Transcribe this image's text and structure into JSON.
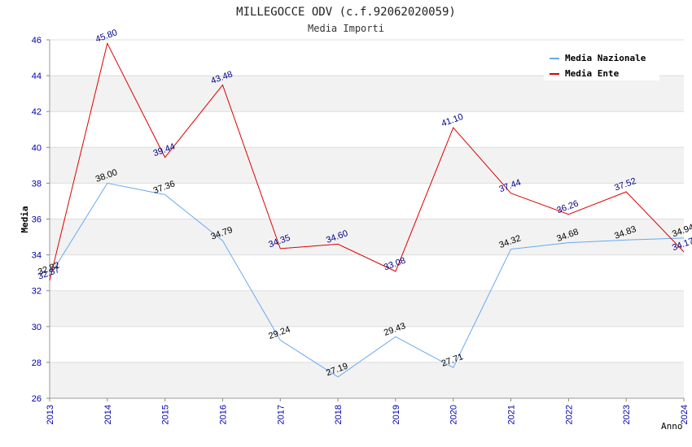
{
  "chart_data": {
    "type": "line",
    "title": "MILLEGOCCE ODV (c.f.92062020059)",
    "subtitle": "Media Importi",
    "xlabel": "Anno",
    "ylabel": "Media",
    "ylim": [
      26,
      46
    ],
    "yticks": [
      "26",
      "28",
      "30",
      "32",
      "34",
      "36",
      "38",
      "40",
      "42",
      "44",
      "46"
    ],
    "categories": [
      "2013",
      "2014",
      "2015",
      "2016",
      "2017",
      "2018",
      "2019",
      "2020",
      "2021",
      "2022",
      "2023",
      "2024"
    ],
    "legend_position": "top-right",
    "series": [
      {
        "name": "Media Nazionale",
        "color": "#66aaee",
        "label_color": "#000000",
        "values": [
          32.82,
          38.0,
          37.36,
          34.79,
          29.24,
          27.19,
          29.43,
          27.71,
          34.32,
          34.68,
          34.83,
          34.94
        ],
        "labels": [
          "32.82",
          "38.00",
          "37.36",
          "34.79",
          "29.24",
          "27.19",
          "29.43",
          "27.71",
          "34.32",
          "34.68",
          "34.83",
          "34.94"
        ]
      },
      {
        "name": "Media Ente",
        "color": "#dd0000",
        "label_color": "#000088",
        "values": [
          32.57,
          45.8,
          39.44,
          43.48,
          34.35,
          34.6,
          33.08,
          41.1,
          37.44,
          36.26,
          37.52,
          34.17
        ],
        "labels": [
          "32.57",
          "45.80",
          "39.44",
          "43.48",
          "34.35",
          "34.60",
          "33.08",
          "41.10",
          "37.44",
          "36.26",
          "37.52",
          "34.17"
        ]
      }
    ]
  }
}
